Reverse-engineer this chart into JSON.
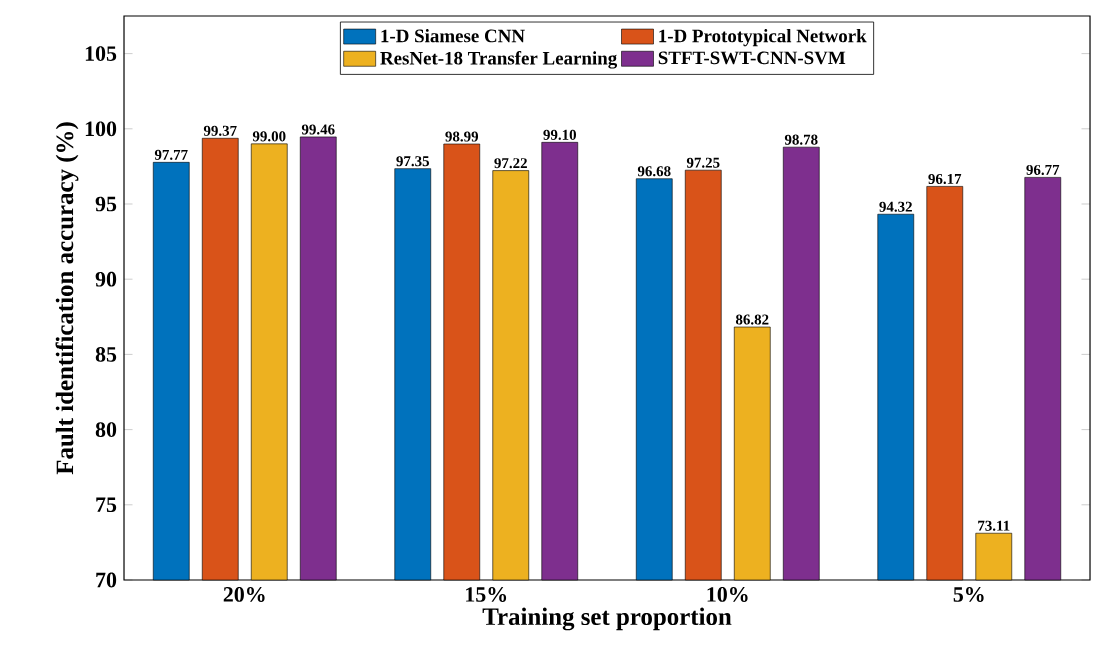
{
  "chart_data": {
    "type": "bar",
    "xlabel": "Training set proportion",
    "ylabel": "Fault identification accuracy (%)",
    "categories": [
      "20%",
      "15%",
      "10%",
      "5%"
    ],
    "series": [
      {
        "name": "1-D Siamese CNN",
        "color": "#0072bd",
        "values": [
          97.77,
          97.35,
          96.68,
          94.32
        ],
        "value_labels": [
          "97.77",
          "97.35",
          "96.68",
          "94.32"
        ]
      },
      {
        "name": "1-D Prototypical Network",
        "color": "#d95319",
        "values": [
          99.37,
          98.99,
          97.25,
          96.17
        ],
        "value_labels": [
          "99.37",
          "98.99",
          "97.25",
          "96.17"
        ]
      },
      {
        "name": "ResNet-18 Transfer Learning",
        "color": "#edb120",
        "values": [
          99.0,
          97.22,
          86.82,
          73.11
        ],
        "value_labels": [
          "99.00",
          "97.22",
          "86.82",
          "73.11"
        ]
      },
      {
        "name": "STFT-SWT-CNN-SVM",
        "color": "#7e2f8e",
        "values": [
          99.46,
          99.1,
          98.78,
          96.77
        ],
        "value_labels": [
          "99.46",
          "99.10",
          "98.78",
          "96.77"
        ]
      }
    ],
    "ylim": [
      70,
      107.5
    ],
    "yticks": [
      70,
      75,
      80,
      85,
      90,
      95,
      100,
      105
    ],
    "grid": false,
    "legend": "top"
  }
}
